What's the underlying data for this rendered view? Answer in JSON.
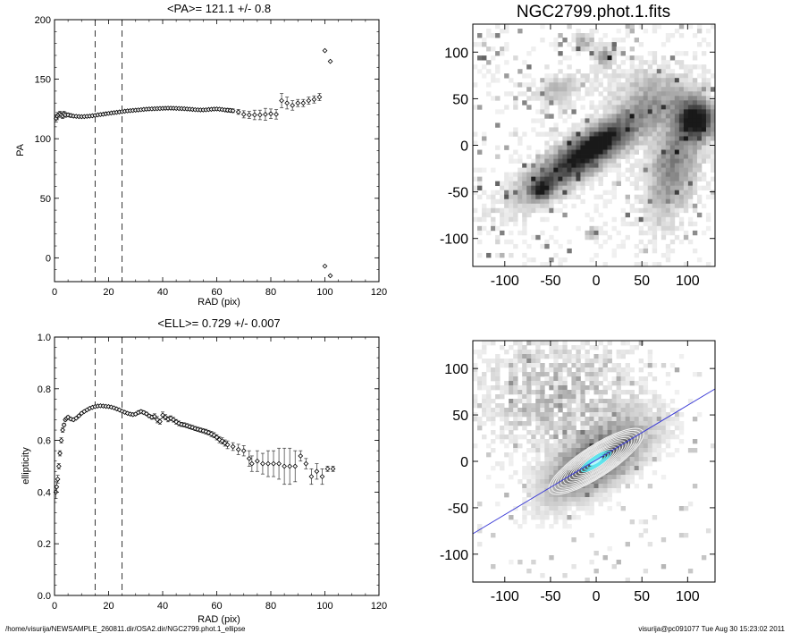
{
  "chart_data": [
    {
      "type": "scatter",
      "title": "<PA>= 121.1 +/-   0.8",
      "xlabel": "RAD (pix)",
      "ylabel": "PA",
      "xlim": [
        0,
        120
      ],
      "ylim": [
        -20,
        200
      ],
      "xticks": [
        "0",
        "20",
        "40",
        "60",
        "80",
        "100",
        "120"
      ],
      "yticks": [
        "0",
        "50",
        "100",
        "150",
        "200"
      ],
      "markers": [
        15,
        25
      ],
      "points": [
        [
          0.6,
          117,
          3
        ],
        [
          1.0,
          119,
          3
        ],
        [
          1.5,
          120,
          2
        ],
        [
          2.0,
          121,
          2
        ],
        [
          2.5,
          120,
          2
        ],
        [
          3.0,
          119,
          2
        ],
        [
          3.5,
          121,
          2
        ],
        [
          4.0,
          120,
          2
        ],
        [
          5,
          120,
          1.5
        ],
        [
          6,
          119.5,
          1.5
        ],
        [
          7,
          119,
          1
        ],
        [
          8,
          118.8,
          1
        ],
        [
          9,
          118.6,
          1
        ],
        [
          10,
          118.5,
          1
        ],
        [
          11,
          118.6,
          1
        ],
        [
          12,
          118.8,
          1
        ],
        [
          13,
          119,
          1
        ],
        [
          14,
          119.3,
          1
        ],
        [
          15,
          119.6,
          1
        ],
        [
          16,
          120,
          1
        ],
        [
          17,
          120.3,
          1
        ],
        [
          18,
          120.6,
          1
        ],
        [
          19,
          121,
          1
        ],
        [
          20,
          121.3,
          1
        ],
        [
          21,
          121.6,
          1
        ],
        [
          22,
          121.9,
          1
        ],
        [
          23,
          122.2,
          1
        ],
        [
          24,
          122.5,
          1
        ],
        [
          25,
          122.8,
          1
        ],
        [
          26,
          123.1,
          1
        ],
        [
          27,
          123.4,
          1
        ],
        [
          28,
          123.6,
          1
        ],
        [
          29,
          123.8,
          1
        ],
        [
          30,
          124,
          1
        ],
        [
          31,
          124.2,
          1
        ],
        [
          32,
          124.4,
          1
        ],
        [
          33,
          124.6,
          1
        ],
        [
          34,
          124.8,
          1
        ],
        [
          35,
          125,
          1
        ],
        [
          36,
          125.1,
          1
        ],
        [
          37,
          125.2,
          1
        ],
        [
          38,
          125.3,
          1
        ],
        [
          39,
          125.4,
          1
        ],
        [
          40,
          125.5,
          1
        ],
        [
          41,
          125.6,
          1
        ],
        [
          42,
          125.7,
          1
        ],
        [
          43,
          125.7,
          1
        ],
        [
          44,
          125.6,
          1
        ],
        [
          45,
          125.5,
          1
        ],
        [
          46,
          125.4,
          1
        ],
        [
          47,
          125.3,
          1
        ],
        [
          48,
          125.2,
          1
        ],
        [
          49,
          125,
          1
        ],
        [
          50,
          124.8,
          1
        ],
        [
          51,
          124.6,
          1
        ],
        [
          52,
          124.4,
          1
        ],
        [
          53,
          124.3,
          1
        ],
        [
          54,
          124.2,
          1
        ],
        [
          55,
          124.2,
          1
        ],
        [
          56,
          124.3,
          1
        ],
        [
          57,
          124.5,
          1
        ],
        [
          58,
          124.7,
          1
        ],
        [
          59,
          124.9,
          1
        ],
        [
          60,
          125,
          1
        ],
        [
          61,
          124.8,
          1
        ],
        [
          62,
          124.5,
          1
        ],
        [
          63,
          124.2,
          1
        ],
        [
          64,
          124,
          1.5
        ],
        [
          65,
          123.8,
          1.5
        ],
        [
          66,
          123.5,
          1.5
        ],
        [
          68,
          122.5,
          2
        ],
        [
          70,
          120.5,
          3
        ],
        [
          72,
          120,
          3
        ],
        [
          74,
          120,
          4
        ],
        [
          76,
          120,
          4
        ],
        [
          78,
          120.5,
          5
        ],
        [
          80,
          121,
          4
        ],
        [
          82,
          120.5,
          4
        ],
        [
          84,
          132,
          6
        ],
        [
          86,
          130,
          5
        ],
        [
          88,
          128,
          4
        ],
        [
          90,
          130,
          3
        ],
        [
          92,
          130,
          3
        ],
        [
          94,
          132,
          3
        ],
        [
          96,
          133,
          3
        ],
        [
          98,
          135,
          3
        ],
        [
          100,
          174,
          0
        ],
        [
          102,
          165,
          0
        ],
        [
          100,
          -7,
          0
        ],
        [
          102,
          -15,
          0
        ]
      ]
    },
    {
      "type": "scatter",
      "title": "<ELL>= 0.729 +/-  0.007",
      "xlabel": "RAD (pix)",
      "ylabel": "ellipticity",
      "xlim": [
        0,
        120
      ],
      "ylim": [
        0,
        1
      ],
      "xticks": [
        "0",
        "20",
        "40",
        "60",
        "80",
        "100",
        "120"
      ],
      "yticks": [
        "0.0",
        "0.2",
        "0.4",
        "0.6",
        "0.8",
        "1.0"
      ],
      "markers": [
        15,
        25
      ],
      "points": [
        [
          0.5,
          0.4,
          0.025
        ],
        [
          0.8,
          0.42,
          0.02
        ],
        [
          1.2,
          0.45,
          0.015
        ],
        [
          1.6,
          0.5,
          0.01
        ],
        [
          2.0,
          0.55,
          0.01
        ],
        [
          2.5,
          0.6,
          0.01
        ],
        [
          3,
          0.64,
          0.008
        ],
        [
          3.5,
          0.66,
          0.006
        ],
        [
          4,
          0.68,
          0.005
        ],
        [
          4.5,
          0.685,
          0.005
        ],
        [
          5,
          0.69,
          0.005
        ],
        [
          6,
          0.683,
          0.005
        ],
        [
          7,
          0.68,
          0.005
        ],
        [
          8,
          0.686,
          0.004
        ],
        [
          9,
          0.695,
          0.004
        ],
        [
          10,
          0.705,
          0.004
        ],
        [
          11,
          0.712,
          0.004
        ],
        [
          12,
          0.718,
          0.004
        ],
        [
          13,
          0.724,
          0.004
        ],
        [
          14,
          0.728,
          0.004
        ],
        [
          15,
          0.731,
          0.004
        ],
        [
          16,
          0.733,
          0.004
        ],
        [
          17,
          0.734,
          0.004
        ],
        [
          18,
          0.733,
          0.004
        ],
        [
          19,
          0.732,
          0.004
        ],
        [
          20,
          0.731,
          0.004
        ],
        [
          21,
          0.729,
          0.004
        ],
        [
          22,
          0.726,
          0.004
        ],
        [
          23,
          0.722,
          0.004
        ],
        [
          24,
          0.718,
          0.004
        ],
        [
          25,
          0.713,
          0.004
        ],
        [
          26,
          0.709,
          0.004
        ],
        [
          27,
          0.705,
          0.004
        ],
        [
          28,
          0.702,
          0.005
        ],
        [
          29,
          0.7,
          0.005
        ],
        [
          30,
          0.702,
          0.005
        ],
        [
          31,
          0.708,
          0.006
        ],
        [
          32,
          0.712,
          0.006
        ],
        [
          33,
          0.708,
          0.006
        ],
        [
          34,
          0.703,
          0.006
        ],
        [
          35,
          0.695,
          0.006
        ],
        [
          36,
          0.69,
          0.008
        ],
        [
          37,
          0.693,
          0.01
        ],
        [
          38,
          0.68,
          0.012
        ],
        [
          39,
          0.673,
          0.01
        ],
        [
          40,
          0.698,
          0.012
        ],
        [
          41,
          0.69,
          0.01
        ],
        [
          42,
          0.682,
          0.01
        ],
        [
          43,
          0.686,
          0.009
        ],
        [
          44,
          0.68,
          0.009
        ],
        [
          45,
          0.672,
          0.009
        ],
        [
          46,
          0.666,
          0.009
        ],
        [
          47,
          0.662,
          0.008
        ],
        [
          48,
          0.66,
          0.008
        ],
        [
          49,
          0.657,
          0.008
        ],
        [
          50,
          0.653,
          0.008
        ],
        [
          51,
          0.65,
          0.008
        ],
        [
          52,
          0.646,
          0.008
        ],
        [
          53,
          0.643,
          0.008
        ],
        [
          54,
          0.64,
          0.008
        ],
        [
          55,
          0.637,
          0.008
        ],
        [
          56,
          0.634,
          0.009
        ],
        [
          57,
          0.63,
          0.009
        ],
        [
          58,
          0.625,
          0.01
        ],
        [
          59,
          0.62,
          0.01
        ],
        [
          60,
          0.612,
          0.01
        ],
        [
          61,
          0.603,
          0.012
        ],
        [
          62,
          0.598,
          0.012
        ],
        [
          63,
          0.59,
          0.012
        ],
        [
          64,
          0.583,
          0.015
        ],
        [
          66,
          0.576,
          0.015
        ],
        [
          68,
          0.565,
          0.02
        ],
        [
          70,
          0.56,
          0.02
        ],
        [
          72,
          0.53,
          0.03
        ],
        [
          73,
          0.51,
          0.03
        ],
        [
          75,
          0.52,
          0.04
        ],
        [
          77,
          0.51,
          0.04
        ],
        [
          79,
          0.51,
          0.05
        ],
        [
          81,
          0.51,
          0.05
        ],
        [
          83,
          0.51,
          0.06
        ],
        [
          85,
          0.5,
          0.07
        ],
        [
          87,
          0.5,
          0.07
        ],
        [
          89,
          0.5,
          0.06
        ],
        [
          91,
          0.54,
          0.02
        ],
        [
          93,
          0.51,
          0.02
        ],
        [
          95,
          0.46,
          0.03
        ],
        [
          97,
          0.48,
          0.03
        ],
        [
          99,
          0.46,
          0.03
        ],
        [
          101,
          0.49,
          0.01
        ],
        [
          103,
          0.49,
          0.01
        ]
      ]
    },
    {
      "type": "heatmap",
      "title": "NGC2799.phot.1.fits",
      "xlim": [
        -135,
        130
      ],
      "ylim": [
        -130,
        130
      ],
      "xticks": [
        "-100",
        "-50",
        "0",
        "50",
        "100"
      ],
      "yticks": [
        "-100",
        "-50",
        "0",
        "50",
        "100"
      ],
      "colormap": "inverted grayscale"
    },
    {
      "type": "heatmap",
      "title": "",
      "xlim": [
        -135,
        130
      ],
      "ylim": [
        -130,
        130
      ],
      "xticks": [
        "-100",
        "-50",
        "0",
        "50",
        "100"
      ],
      "yticks": [
        "-100",
        "-50",
        "0",
        "50",
        "100"
      ],
      "colormap": "grayscale with cyan isophote contours",
      "line_color": "#3b3bd6",
      "line": [
        [
          -135,
          -78
        ],
        [
          130,
          78
        ]
      ]
    }
  ],
  "footer": {
    "left": "/home/visurija/NEWSAMPLE_260811.dir/OSA2.dir/NGC2799.phot.1_ellipse",
    "right": "visurija@pc091077  Tue Aug 30 15:23:02 2011"
  }
}
